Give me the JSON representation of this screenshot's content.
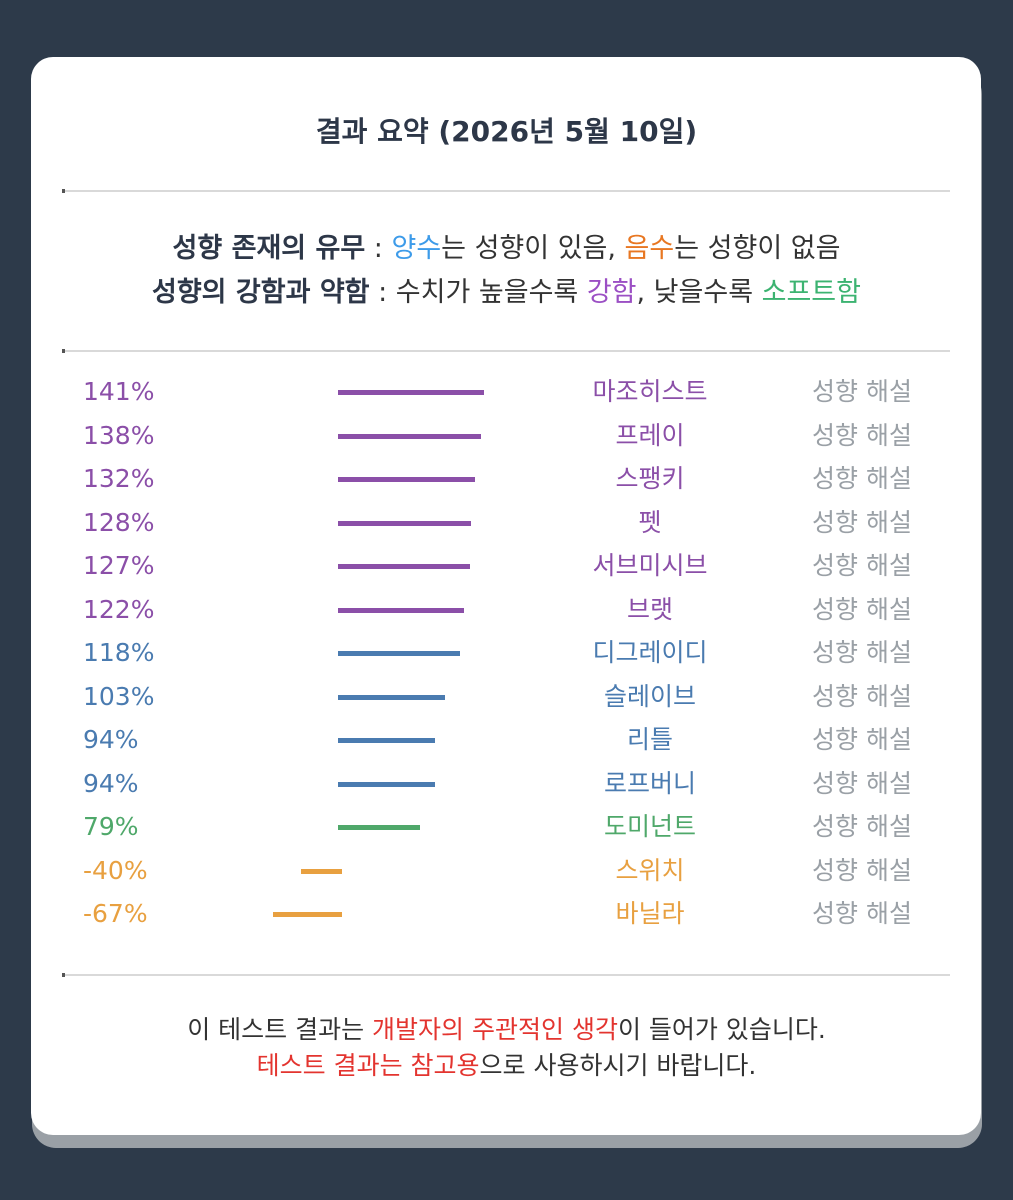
{
  "header": {
    "title": "결과 요약 (2026년 5월 10일)"
  },
  "legend": {
    "line1": {
      "label": "성향 존재의 유무",
      "sep": " : ",
      "pos_word": "양수",
      "pos_rest": "는 성향이 있음, ",
      "neg_word": "음수",
      "neg_rest": "는 성향이 없음"
    },
    "line2": {
      "label": "성향의 강함과 약함",
      "sep": " : ",
      "pre": "수치가 높을수록 ",
      "strong": "강함",
      "mid": ", 낮을수록 ",
      "soft": "소프트함"
    }
  },
  "colors": {
    "strong": "#8b4fa8",
    "medium": "#4a7bb0",
    "mild": "#4fa86a",
    "negative": "#e8a040",
    "muted": "#9aa0a6"
  },
  "chart_data": {
    "type": "bar",
    "orientation": "horizontal",
    "categories": [
      "마조히스트",
      "프레이",
      "스팽키",
      "펫",
      "서브미시브",
      "브랫",
      "디그레이디",
      "슬레이브",
      "리틀",
      "로프버니",
      "도미넌트",
      "스위치",
      "바닐라"
    ],
    "values": [
      141,
      138,
      132,
      128,
      127,
      122,
      118,
      103,
      94,
      94,
      79,
      -40,
      -67
    ],
    "labels": [
      "141%",
      "138%",
      "132%",
      "128%",
      "127%",
      "122%",
      "118%",
      "103%",
      "94%",
      "94%",
      "79%",
      "-40%",
      "-67%"
    ],
    "tiers": [
      "strong",
      "strong",
      "strong",
      "strong",
      "strong",
      "strong",
      "medium",
      "medium",
      "medium",
      "medium",
      "mild",
      "negative",
      "negative"
    ],
    "link_label": "성향 해설",
    "grid": false,
    "legend": "none"
  },
  "footer": {
    "line1_pre": "이 테스트 결과는 ",
    "line1_hl": "개발자의 주관적인 생각",
    "line1_post": "이 들어가 있습니다.",
    "line2_hl": "테스트 결과는 참고용",
    "line2_post": "으로 사용하시기 바랍니다."
  }
}
